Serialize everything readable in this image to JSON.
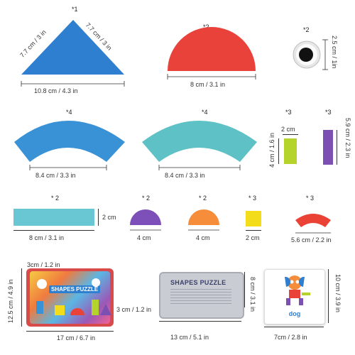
{
  "pieces": {
    "triangle": {
      "count": "*1",
      "side_left": "7.7 cm / 3 in",
      "side_right": "7.7 cm / 3 in",
      "base": "10.8 cm / 4.3 in",
      "color": "#2f7fd0"
    },
    "red_semicircle": {
      "count": "*2",
      "width": "8 cm / 3.1 in",
      "color": "#e8423a"
    },
    "googly_eye": {
      "count": "*2",
      "size": "2.5 cm / 1in"
    },
    "blue_arc": {
      "count": "*4",
      "width": "8.4 cm / 3.3 in",
      "color": "#3a92d6"
    },
    "teal_arc": {
      "count": "*4",
      "width": "8.4 cm / 3.3 in",
      "color": "#5ec1c6"
    },
    "green_block": {
      "count": "*3",
      "width": "2 cm",
      "height": "4 cm / 1.6 in",
      "color": "#b4d42c"
    },
    "purple_block": {
      "count": "*3",
      "height": "5.9 cm / 2.3 in",
      "color": "#7c4fb3"
    },
    "teal_bar": {
      "count": "* 2",
      "width": "8 cm / 3.1 in",
      "height": "2 cm",
      "color": "#69c6d3"
    },
    "purple_semicircle": {
      "count": "* 2",
      "width": "4 cm",
      "color": "#7d4fb8"
    },
    "orange_semicircle": {
      "count": "* 2",
      "width": "4 cm",
      "color": "#f58d3a"
    },
    "yellow_square": {
      "count": "* 3",
      "width": "2 cm",
      "color": "#f3dc1a"
    },
    "red_arc": {
      "count": "* 3",
      "width": "5.6 cm / 2.2 in",
      "color": "#ea4336"
    }
  },
  "packaging": {
    "tin_open": {
      "depth": "3cm / 1.2 in",
      "height": "12.5 cm / 4.9 in",
      "width": "17 cm / 6.7 in",
      "title": "SHAPES PUZZLE"
    },
    "tin_closed": {
      "depth": "3 cm / 1.2 in",
      "height": "8 cm / 3.1 in",
      "width": "13 cm / 5.1 in",
      "title": "SHAPES PUZZLE"
    },
    "card": {
      "height": "10 cm / 3.9 in",
      "width": "7cm / 2.8 in",
      "word": "dog"
    }
  }
}
